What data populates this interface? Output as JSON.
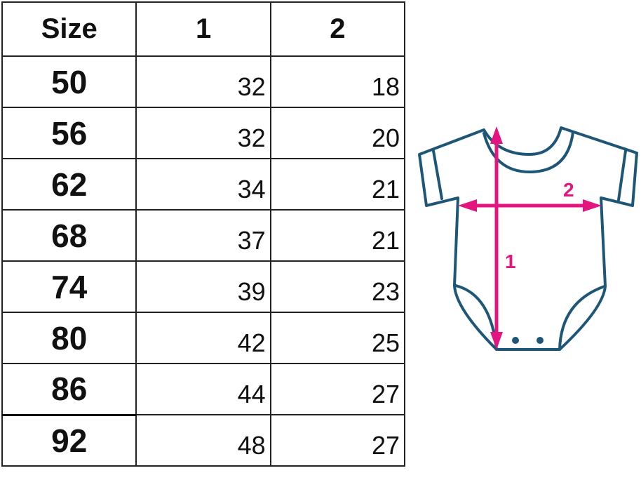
{
  "table": {
    "headers": [
      "Size",
      "1",
      "2"
    ],
    "rows": [
      [
        "50",
        "32",
        "18"
      ],
      [
        "56",
        "32",
        "20"
      ],
      [
        "62",
        "34",
        "21"
      ],
      [
        "68",
        "37",
        "21"
      ],
      [
        "74",
        "39",
        "23"
      ],
      [
        "80",
        "42",
        "25"
      ],
      [
        "86",
        "44",
        "27"
      ],
      [
        "92",
        "48",
        "27"
      ]
    ]
  },
  "diagram": {
    "garment": "baby-bodysuit",
    "length_label": "1",
    "width_label": "2",
    "colors": {
      "outline": "#1d5676",
      "measure": "#e3157f"
    }
  }
}
